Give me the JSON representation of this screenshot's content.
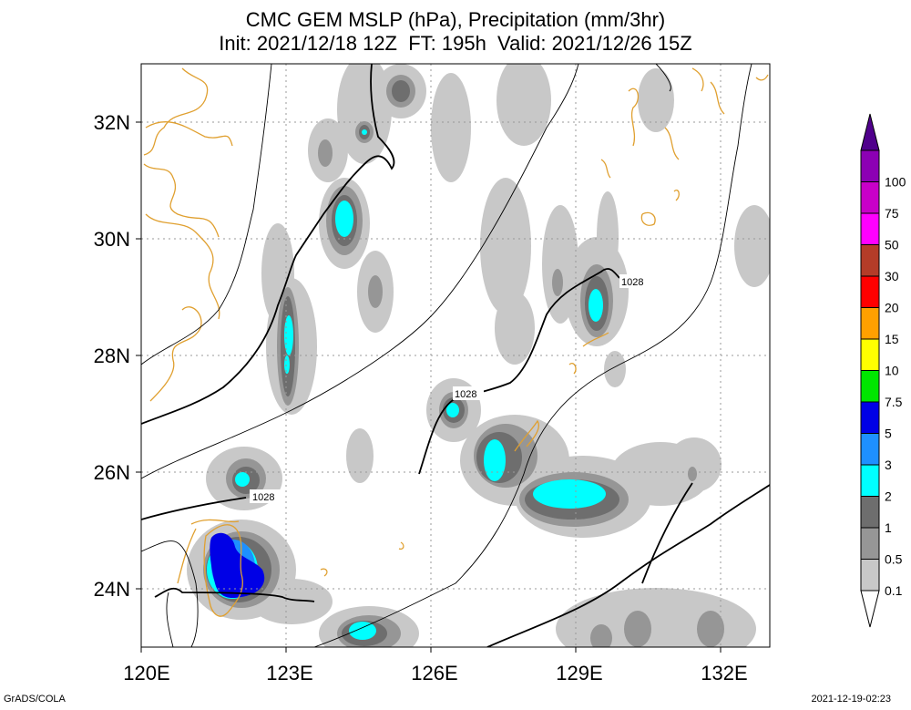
{
  "title_line1": "CMC GEM MSLP (hPa), Precipitation (mm/3hr)",
  "title_line2": "Init: 2021/12/18 12Z  FT: 195h  Valid: 2021/12/26 15Z",
  "footer_left": "GrADS/COLA",
  "footer_right": "2021-12-19-02:23",
  "map": {
    "lon_range": [
      120,
      133
    ],
    "lat_range": [
      23,
      33
    ],
    "lon_ticks": [
      {
        "value": 120,
        "label": "120E"
      },
      {
        "value": 123,
        "label": "123E"
      },
      {
        "value": 126,
        "label": "126E"
      },
      {
        "value": 129,
        "label": "129E"
      },
      {
        "value": 132,
        "label": "132E"
      }
    ],
    "lat_ticks": [
      {
        "value": 24,
        "label": "24N"
      },
      {
        "value": 26,
        "label": "26N"
      },
      {
        "value": 28,
        "label": "28N"
      },
      {
        "value": 30,
        "label": "30N"
      },
      {
        "value": 32,
        "label": "32N"
      }
    ],
    "isobar_labels": [
      "1028",
      "1028",
      "1028"
    ],
    "coast_color": "#e0a030"
  },
  "colorbar": {
    "levels": [
      {
        "label": "0.1",
        "color": "#c8c8c8"
      },
      {
        "label": "0.5",
        "color": "#969696"
      },
      {
        "label": "1",
        "color": "#6e6e6e"
      },
      {
        "label": "2",
        "color": "#00ffff"
      },
      {
        "label": "3",
        "color": "#1e90ff"
      },
      {
        "label": "5",
        "color": "#0000e6"
      },
      {
        "label": "7.5",
        "color": "#00e600"
      },
      {
        "label": "10",
        "color": "#ffff00"
      },
      {
        "label": "15",
        "color": "#ffa000"
      },
      {
        "label": "20",
        "color": "#ff0000"
      },
      {
        "label": "30",
        "color": "#b43c28"
      },
      {
        "label": "50",
        "color": "#ff00ff"
      },
      {
        "label": "75",
        "color": "#c800c8"
      },
      {
        "label": "100",
        "color": "#8c00b4"
      }
    ],
    "top_color": "#50008c"
  }
}
